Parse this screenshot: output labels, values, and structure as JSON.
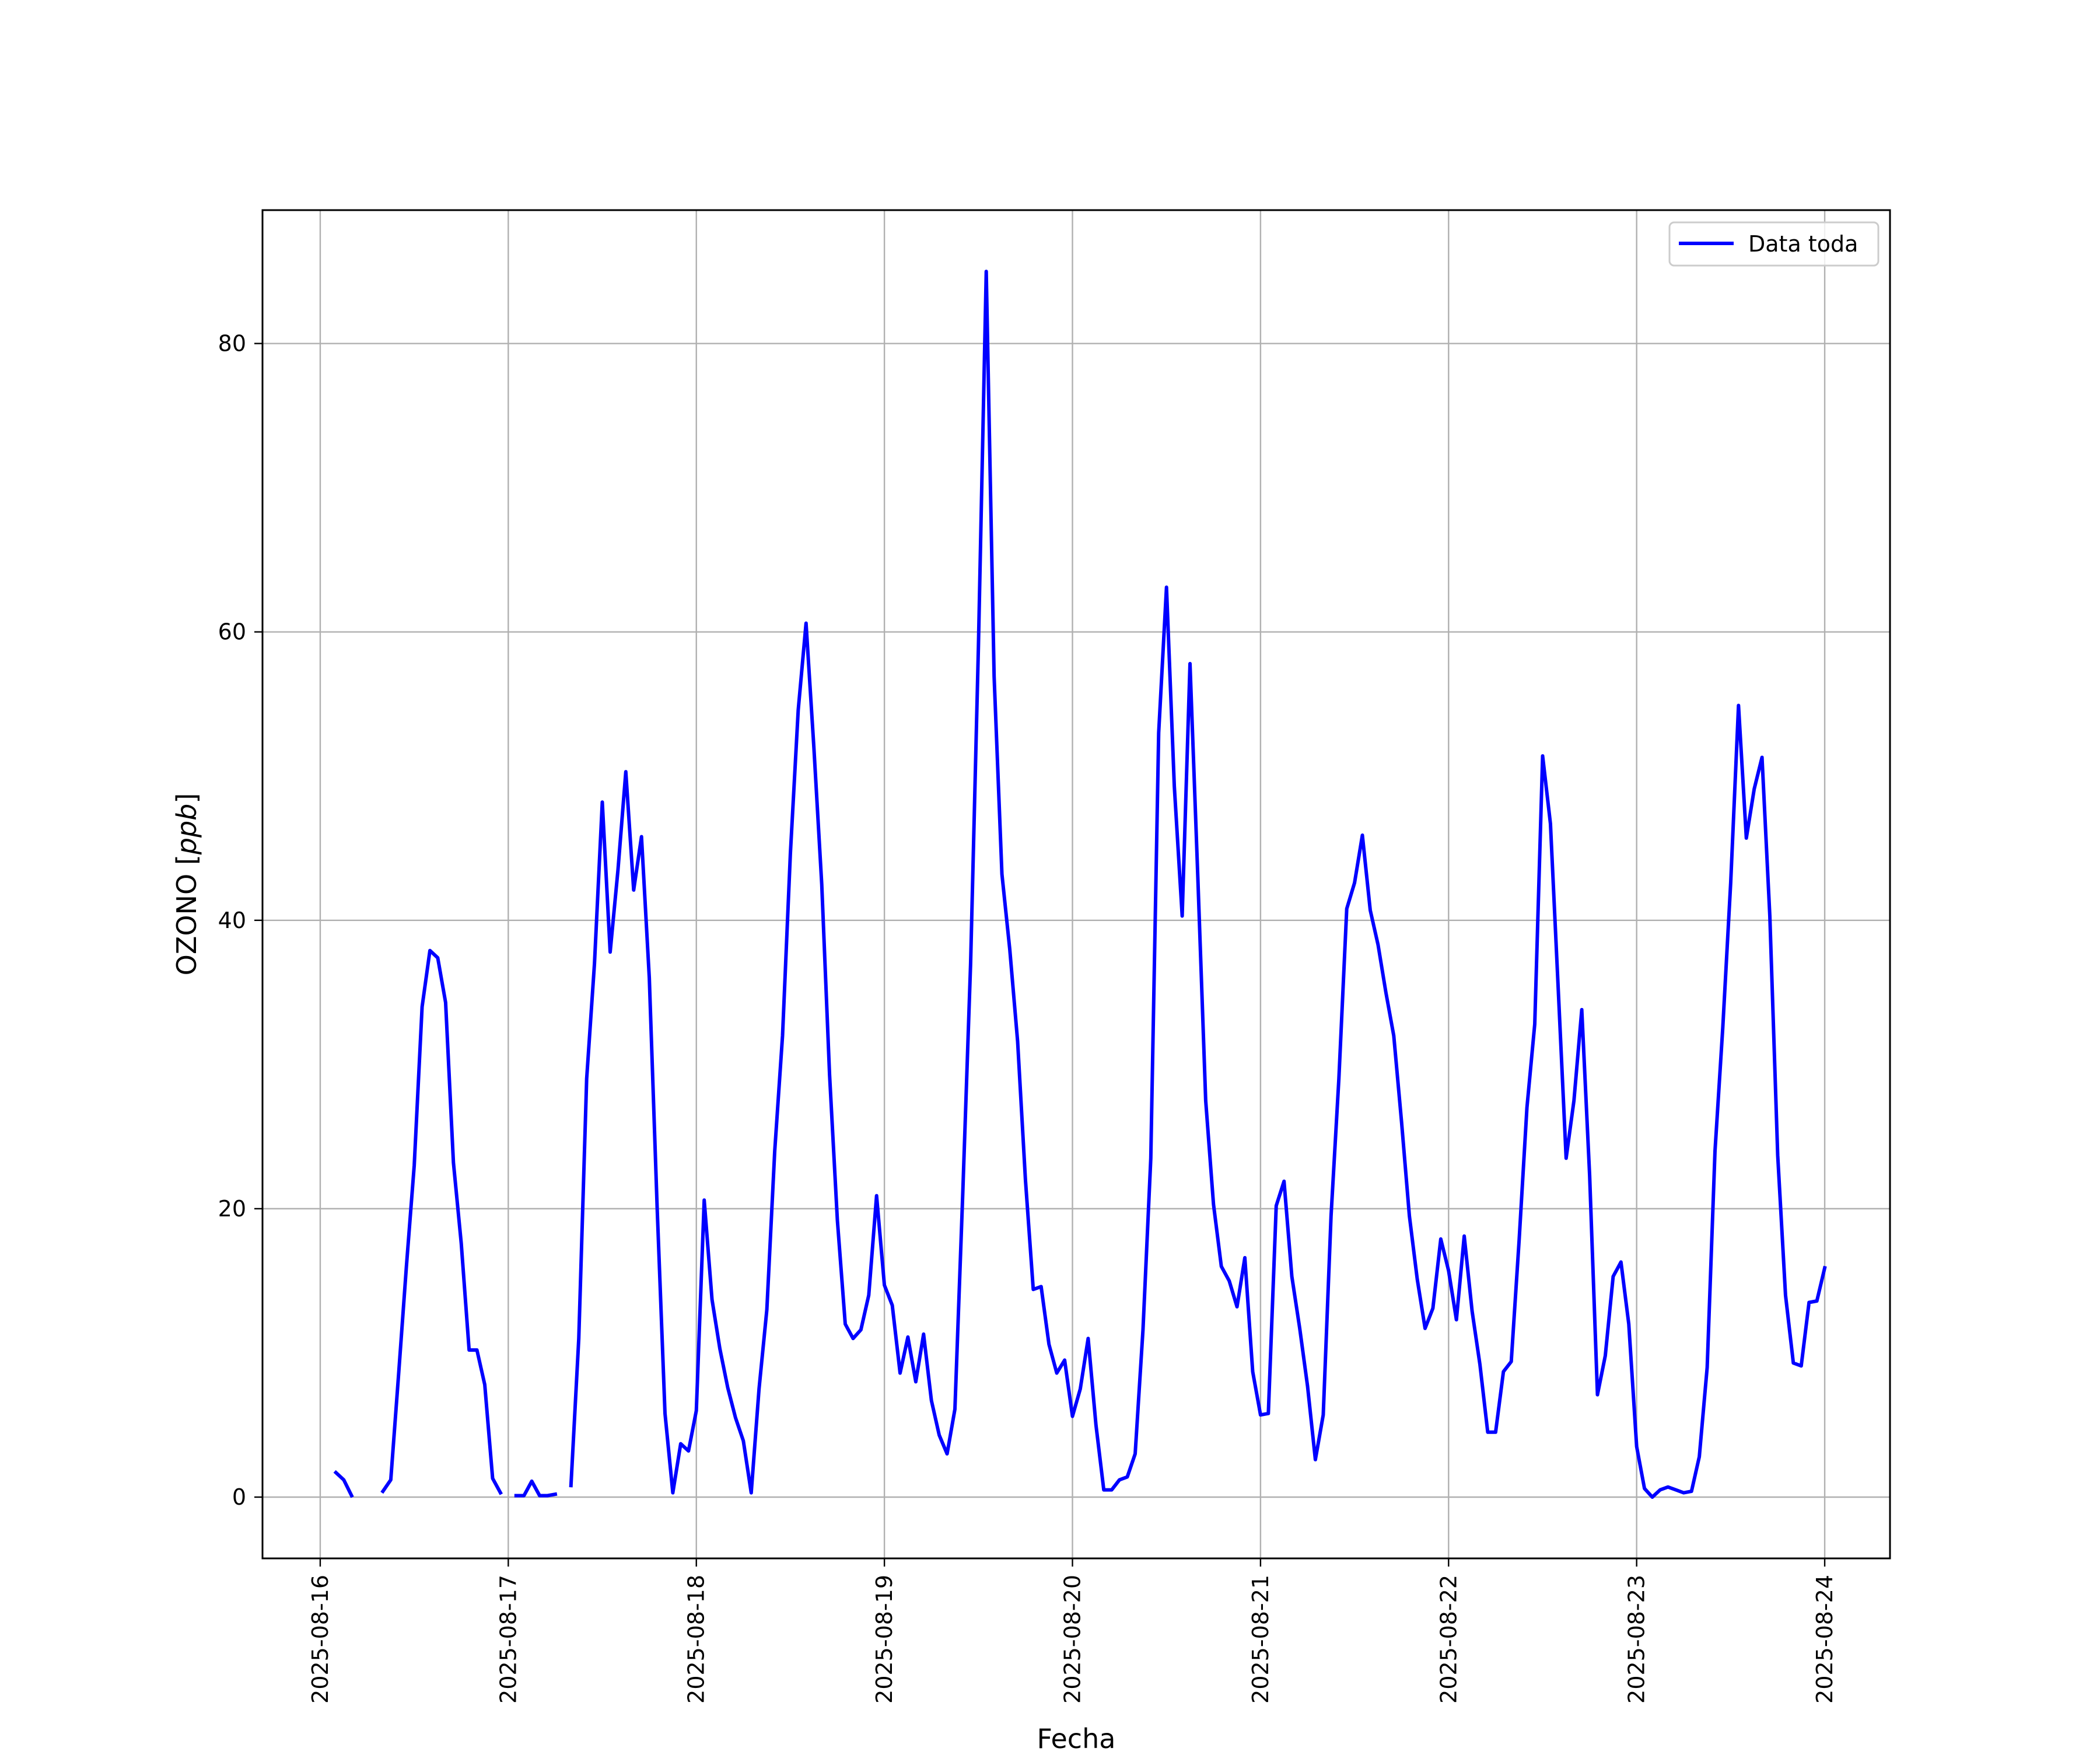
{
  "chart_data": {
    "type": "line",
    "title": "",
    "xlabel": "Fecha",
    "ylabel": "OZONO",
    "ylabel_unit": "ppb",
    "ylim": [
      -4.25,
      89.25
    ],
    "xlim": [
      "2025-08-15T16:38",
      "2025-08-24T08:20"
    ],
    "grid": true,
    "legend_position": "top-right",
    "x_tick_labels": [
      "2025-08-16",
      "2025-08-17",
      "2025-08-18",
      "2025-08-19",
      "2025-08-20",
      "2025-08-21",
      "2025-08-22",
      "2025-08-23",
      "2025-08-24"
    ],
    "y_ticks": [
      0,
      20,
      40,
      60,
      80
    ],
    "y_tick_labels": [
      "0",
      "20",
      "40",
      "60",
      "80"
    ],
    "series": [
      {
        "name": "Data toda",
        "color": "#0000ff",
        "points": [
          [
            "2025-08-16T02:00",
            1.7
          ],
          [
            "2025-08-16T03:00",
            1.2
          ],
          [
            "2025-08-16T04:00",
            0.1
          ],
          null,
          [
            "2025-08-16T08:00",
            0.4
          ],
          [
            "2025-08-16T09:00",
            1.2
          ],
          [
            "2025-08-16T10:00",
            8.5
          ],
          [
            "2025-08-16T11:00",
            16
          ],
          [
            "2025-08-16T12:00",
            23
          ],
          [
            "2025-08-16T13:00",
            34
          ],
          [
            "2025-08-16T14:00",
            37.9
          ],
          [
            "2025-08-16T15:00",
            37.4
          ],
          [
            "2025-08-16T16:00",
            34.3
          ],
          [
            "2025-08-16T17:00",
            23.2
          ],
          [
            "2025-08-16T18:00",
            17.6
          ],
          [
            "2025-08-16T19:00",
            10.2
          ],
          [
            "2025-08-16T20:00",
            10.2
          ],
          [
            "2025-08-16T21:00",
            7.8
          ],
          [
            "2025-08-16T22:00",
            1.3
          ],
          [
            "2025-08-16T23:00",
            0.3
          ],
          null,
          [
            "2025-08-17T01:00",
            0.1
          ],
          [
            "2025-08-17T02:00",
            0.1
          ],
          [
            "2025-08-17T03:00",
            1.1
          ],
          [
            "2025-08-17T04:00",
            0.1
          ],
          [
            "2025-08-17T05:00",
            0.1
          ],
          [
            "2025-08-17T06:00",
            0.2
          ],
          null,
          [
            "2025-08-17T08:00",
            0.8
          ],
          [
            "2025-08-17T09:00",
            11
          ],
          [
            "2025-08-17T10:00",
            29
          ],
          [
            "2025-08-17T11:00",
            37
          ],
          [
            "2025-08-17T12:00",
            48.2
          ],
          [
            "2025-08-17T13:00",
            37.8
          ],
          [
            "2025-08-17T14:00",
            43.5
          ],
          [
            "2025-08-17T15:00",
            50.3
          ],
          [
            "2025-08-17T16:00",
            42.1
          ],
          [
            "2025-08-17T17:00",
            45.8
          ],
          [
            "2025-08-17T18:00",
            36
          ],
          [
            "2025-08-17T19:00",
            20
          ],
          [
            "2025-08-17T20:00",
            5.8
          ],
          [
            "2025-08-17T21:00",
            0.3
          ],
          [
            "2025-08-17T22:00",
            3.7
          ],
          [
            "2025-08-17T23:00",
            3.2
          ],
          [
            "2025-08-18T00:00",
            6
          ],
          [
            "2025-08-18T01:00",
            20.6
          ],
          [
            "2025-08-18T02:00",
            13.7
          ],
          [
            "2025-08-18T03:00",
            10.3
          ],
          [
            "2025-08-18T04:00",
            7.6
          ],
          [
            "2025-08-18T05:00",
            5.5
          ],
          [
            "2025-08-18T06:00",
            3.9
          ],
          [
            "2025-08-18T07:00",
            0.3
          ],
          [
            "2025-08-18T08:00",
            7.5
          ],
          [
            "2025-08-18T09:00",
            13
          ],
          [
            "2025-08-18T10:00",
            24
          ],
          [
            "2025-08-18T11:00",
            32
          ],
          [
            "2025-08-18T12:00",
            44.6
          ],
          [
            "2025-08-18T13:00",
            54.6
          ],
          [
            "2025-08-18T14:00",
            60.6
          ],
          [
            "2025-08-18T15:00",
            52
          ],
          [
            "2025-08-18T16:00",
            42.5
          ],
          [
            "2025-08-18T17:00",
            29.3
          ],
          [
            "2025-08-18T18:00",
            19.2
          ],
          [
            "2025-08-18T19:00",
            12
          ],
          [
            "2025-08-18T20:00",
            11
          ],
          [
            "2025-08-18T21:00",
            11.6
          ],
          [
            "2025-08-18T22:00",
            14
          ],
          [
            "2025-08-18T23:00",
            20.9
          ],
          [
            "2025-08-19T00:00",
            14.7
          ],
          [
            "2025-08-19T01:00",
            13.3
          ],
          [
            "2025-08-19T02:00",
            8.6
          ],
          [
            "2025-08-19T03:00",
            11.1
          ],
          [
            "2025-08-19T04:00",
            8
          ],
          [
            "2025-08-19T05:00",
            11.3
          ],
          [
            "2025-08-19T06:00",
            6.7
          ],
          [
            "2025-08-19T07:00",
            4.3
          ],
          [
            "2025-08-19T08:00",
            3
          ],
          [
            "2025-08-19T09:00",
            6.1
          ],
          [
            "2025-08-19T10:00",
            21
          ],
          [
            "2025-08-19T11:00",
            37
          ],
          [
            "2025-08-19T12:00",
            59
          ],
          [
            "2025-08-19T13:00",
            85
          ],
          [
            "2025-08-19T14:00",
            56.9
          ],
          [
            "2025-08-19T15:00",
            43.2
          ],
          [
            "2025-08-19T16:00",
            38
          ],
          [
            "2025-08-19T17:00",
            31.6
          ],
          [
            "2025-08-19T18:00",
            22
          ],
          [
            "2025-08-19T19:00",
            14.4
          ],
          [
            "2025-08-19T20:00",
            14.6
          ],
          [
            "2025-08-19T21:00",
            10.6
          ],
          [
            "2025-08-19T22:00",
            8.6
          ],
          [
            "2025-08-19T23:00",
            9.5
          ],
          [
            "2025-08-20T00:00",
            5.6
          ],
          [
            "2025-08-20T01:00",
            7.5
          ],
          [
            "2025-08-20T02:00",
            11
          ],
          [
            "2025-08-20T03:00",
            5
          ],
          [
            "2025-08-20T04:00",
            0.5
          ],
          [
            "2025-08-20T05:00",
            0.5
          ],
          [
            "2025-08-20T06:00",
            1.2
          ],
          [
            "2025-08-20T07:00",
            1.4
          ],
          [
            "2025-08-20T08:00",
            3
          ],
          [
            "2025-08-20T09:00",
            11.6
          ],
          [
            "2025-08-20T10:00",
            23.5
          ],
          [
            "2025-08-20T11:00",
            53
          ],
          [
            "2025-08-20T12:00",
            63.1
          ],
          [
            "2025-08-20T13:00",
            49.3
          ],
          [
            "2025-08-20T14:00",
            40.3
          ],
          [
            "2025-08-20T15:00",
            57.8
          ],
          [
            "2025-08-20T16:00",
            43
          ],
          [
            "2025-08-20T17:00",
            27.5
          ],
          [
            "2025-08-20T18:00",
            20.3
          ],
          [
            "2025-08-20T19:00",
            16
          ],
          [
            "2025-08-20T20:00",
            15
          ],
          [
            "2025-08-20T21:00",
            13.2
          ],
          [
            "2025-08-20T22:00",
            16.6
          ],
          [
            "2025-08-20T23:00",
            8.7
          ],
          [
            "2025-08-21T00:00",
            5.7
          ],
          [
            "2025-08-21T01:00",
            5.8
          ],
          [
            "2025-08-21T02:00",
            20.2
          ],
          [
            "2025-08-21T03:00",
            21.9
          ],
          [
            "2025-08-21T04:00",
            15.3
          ],
          [
            "2025-08-21T05:00",
            11.7
          ],
          [
            "2025-08-21T06:00",
            7.7
          ],
          [
            "2025-08-21T07:00",
            2.6
          ],
          [
            "2025-08-21T08:00",
            5.7
          ],
          [
            "2025-08-21T09:00",
            19.5
          ],
          [
            "2025-08-21T10:00",
            29
          ],
          [
            "2025-08-21T11:00",
            40.8
          ],
          [
            "2025-08-21T12:00",
            42.6
          ],
          [
            "2025-08-21T13:00",
            45.9
          ],
          [
            "2025-08-21T14:00",
            40.7
          ],
          [
            "2025-08-21T15:00",
            38.3
          ],
          [
            "2025-08-21T16:00",
            35
          ],
          [
            "2025-08-21T17:00",
            32
          ],
          [
            "2025-08-21T18:00",
            26
          ],
          [
            "2025-08-21T19:00",
            19.5
          ],
          [
            "2025-08-21T20:00",
            15.1
          ],
          [
            "2025-08-21T21:00",
            11.7
          ],
          [
            "2025-08-21T22:00",
            13.1
          ],
          [
            "2025-08-21T23:00",
            17.9
          ],
          [
            "2025-08-22T00:00",
            15.7
          ],
          [
            "2025-08-22T01:00",
            12.3
          ],
          [
            "2025-08-22T02:00",
            18.1
          ],
          [
            "2025-08-22T03:00",
            12.9
          ],
          [
            "2025-08-22T04:00",
            9.2
          ],
          [
            "2025-08-22T05:00",
            4.5
          ],
          [
            "2025-08-22T06:00",
            4.5
          ],
          [
            "2025-08-22T07:00",
            8.7
          ],
          [
            "2025-08-22T08:00",
            9.4
          ],
          [
            "2025-08-22T09:00",
            17.8
          ],
          [
            "2025-08-22T10:00",
            27
          ],
          [
            "2025-08-22T11:00",
            32.8
          ],
          [
            "2025-08-22T12:00",
            51.4
          ],
          [
            "2025-08-22T13:00",
            46.7
          ],
          [
            "2025-08-22T14:00",
            35.2
          ],
          [
            "2025-08-22T15:00",
            23.5
          ],
          [
            "2025-08-22T16:00",
            27.5
          ],
          [
            "2025-08-22T17:00",
            33.8
          ],
          [
            "2025-08-22T18:00",
            22.3
          ],
          [
            "2025-08-22T19:00",
            7.1
          ],
          [
            "2025-08-22T20:00",
            9.8
          ],
          [
            "2025-08-22T21:00",
            15.3
          ],
          [
            "2025-08-22T22:00",
            16.3
          ],
          [
            "2025-08-22T23:00",
            12
          ],
          [
            "2025-08-23T00:00",
            3.5
          ],
          [
            "2025-08-23T01:00",
            0.6
          ],
          [
            "2025-08-23T02:00",
            0
          ],
          [
            "2025-08-23T03:00",
            0.5
          ],
          [
            "2025-08-23T04:00",
            0.7
          ],
          [
            "2025-08-23T05:00",
            0.5
          ],
          [
            "2025-08-23T06:00",
            0.3
          ],
          [
            "2025-08-23T07:00",
            0.4
          ],
          [
            "2025-08-23T08:00",
            2.8
          ],
          [
            "2025-08-23T09:00",
            9
          ],
          [
            "2025-08-23T10:00",
            24
          ],
          [
            "2025-08-23T11:00",
            32.6
          ],
          [
            "2025-08-23T12:00",
            42.6
          ],
          [
            "2025-08-23T13:00",
            54.9
          ],
          [
            "2025-08-23T14:00",
            45.7
          ],
          [
            "2025-08-23T15:00",
            49.1
          ],
          [
            "2025-08-23T16:00",
            51.3
          ],
          [
            "2025-08-23T17:00",
            40.3
          ],
          [
            "2025-08-23T18:00",
            23.7
          ],
          [
            "2025-08-23T19:00",
            14
          ],
          [
            "2025-08-23T20:00",
            9.3
          ],
          [
            "2025-08-23T21:00",
            9.1
          ],
          [
            "2025-08-23T22:00",
            13.5
          ],
          [
            "2025-08-23T23:00",
            13.6
          ],
          [
            "2025-08-24T00:00",
            15.9
          ]
        ]
      }
    ]
  }
}
